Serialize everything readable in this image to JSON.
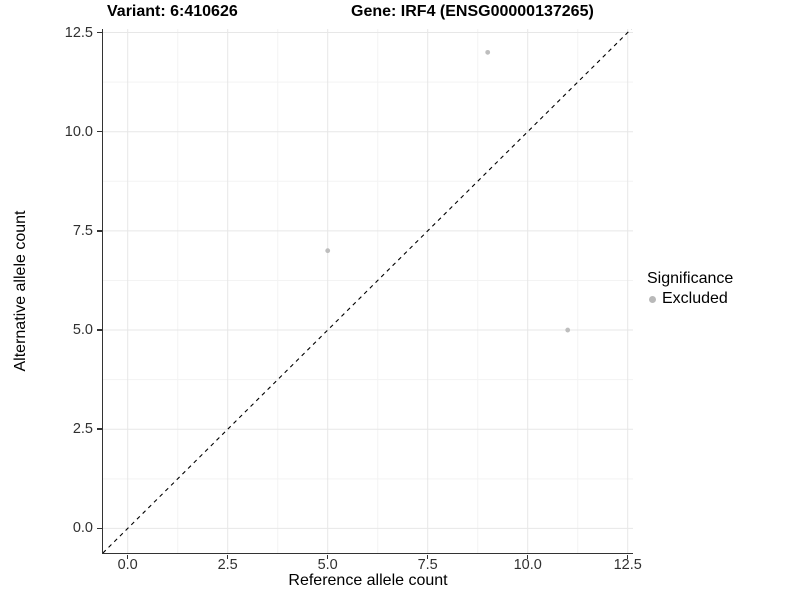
{
  "header": {
    "variant_title": "Variant: 6:410626",
    "gene_title": "Gene: IRF4 (ENSG00000137265)"
  },
  "legend": {
    "title": "Significance",
    "items": [
      {
        "label": "Excluded",
        "color": "#b9b9b9"
      }
    ]
  },
  "colors": {
    "background": "#ffffff",
    "axis_line": "#333333",
    "tick_label": "#303030",
    "grid_major": "#e7e7e7",
    "grid_minor": "#f3f3f3",
    "point": "#bebebe",
    "diagonal_line": "#000000"
  },
  "chart_data": {
    "type": "scatter",
    "title": "Variant: 6:410626   Gene: IRF4 (ENSG00000137265)",
    "xlabel": "Reference allele count",
    "ylabel": "Alternative allele count",
    "xlim": [
      0,
      12.5
    ],
    "ylim": [
      0,
      12.5
    ],
    "x_ticks": [
      0,
      2.5,
      5,
      7.5,
      10,
      12.5
    ],
    "y_ticks": [
      0,
      2.5,
      5,
      7.5,
      10,
      12.5
    ],
    "x_tick_labels": [
      "0.0",
      "2.5",
      "5.0",
      "7.5",
      "10.0",
      "12.5"
    ],
    "y_tick_labels": [
      "0.0",
      "2.5",
      "5.0",
      "7.5",
      "10.0",
      "12.5"
    ],
    "x_minor_ticks": [
      1.25,
      3.75,
      6.25,
      8.75,
      11.25
    ],
    "y_minor_ticks": [
      1.25,
      3.75,
      6.25,
      8.75,
      11.25
    ],
    "grid": true,
    "legend_position": "right",
    "series": [
      {
        "name": "Excluded",
        "color": "#bebebe",
        "points": [
          [
            5,
            7
          ],
          [
            9,
            12
          ],
          [
            11,
            5
          ]
        ]
      }
    ],
    "reference_line": {
      "type": "diagonal",
      "equation": "y = x",
      "style": "dashed",
      "color": "#000000"
    }
  }
}
